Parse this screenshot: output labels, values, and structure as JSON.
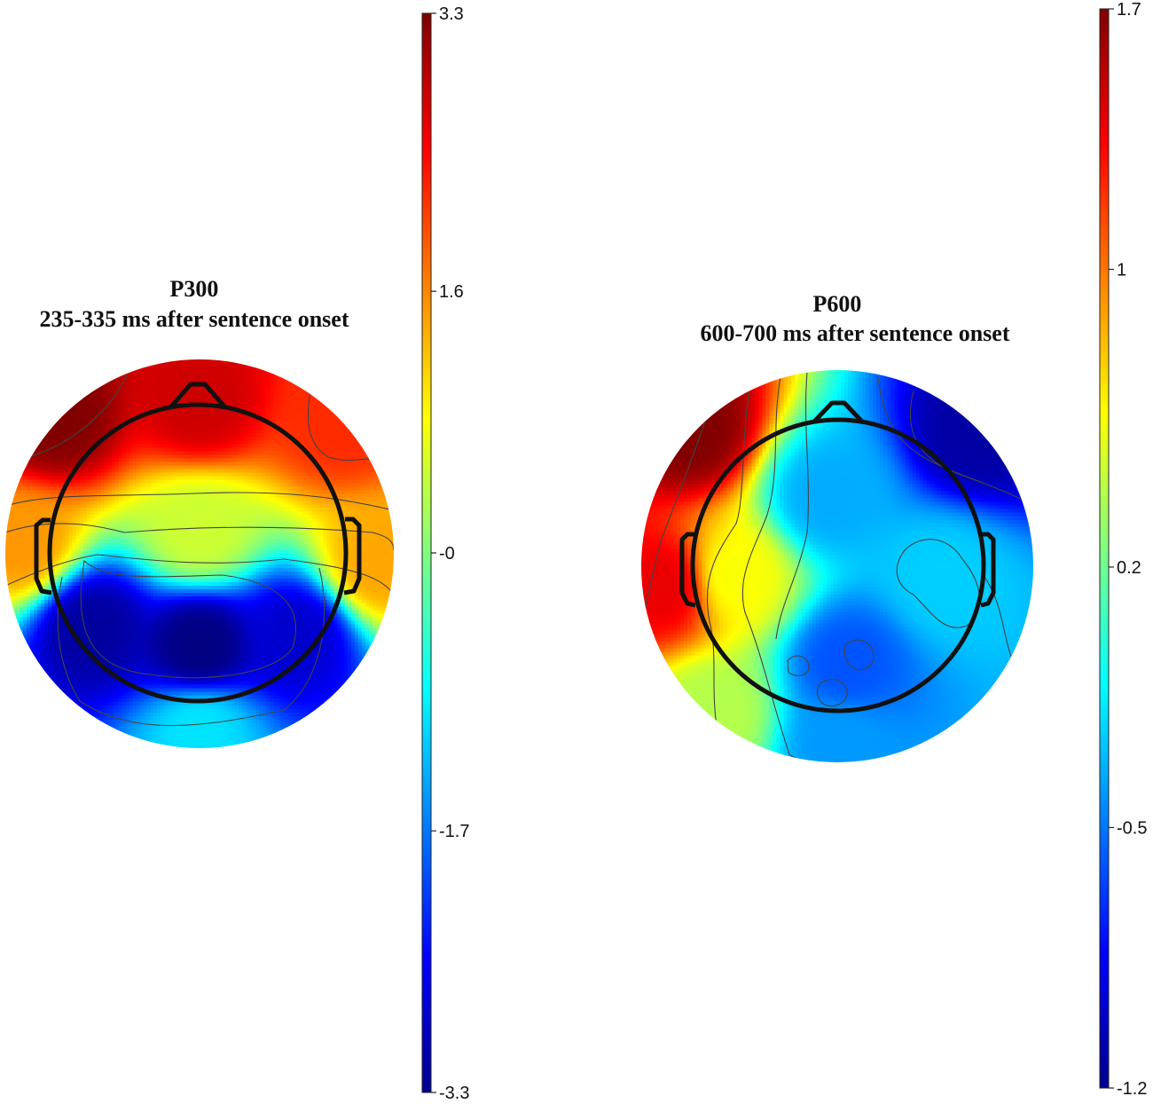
{
  "colors": {
    "colormap": "jet",
    "head_outline": "#111111",
    "contour": "#444444"
  },
  "chart_data": [
    {
      "type": "heatmap",
      "subtype": "eeg-scalp-topography",
      "title": "P300",
      "subtitle": "235-335 ms after sentence onset",
      "colorbar": {
        "min": -3.3,
        "max": 3.3,
        "tick_values": [
          3.3,
          1.6,
          0,
          -1.7,
          -3.3
        ],
        "tick_labels": [
          "3.3",
          "1.6",
          "-0",
          "-1.7",
          "-3.3"
        ]
      },
      "sources": [
        {
          "region": "left-frontal",
          "value": 3.3
        },
        {
          "region": "frontal",
          "value": 2.8
        },
        {
          "region": "right-frontal",
          "value": 2.2
        },
        {
          "region": "right-lateral",
          "value": 1.4
        },
        {
          "region": "left-lateral",
          "value": 1.5
        },
        {
          "region": "central",
          "value": 0.5
        },
        {
          "region": "left-parietal",
          "value": -3.1
        },
        {
          "region": "central-parietal",
          "value": -3.3
        },
        {
          "region": "right-parietal",
          "value": -2.8
        },
        {
          "region": "occipital",
          "value": -1.0
        }
      ]
    },
    {
      "type": "heatmap",
      "subtype": "eeg-scalp-topography",
      "title": "P600",
      "subtitle": "600-700 ms after sentence onset",
      "colorbar": {
        "min": -1.2,
        "max": 1.7,
        "tick_values": [
          1.7,
          1,
          0.2,
          -0.5,
          -1.2
        ],
        "tick_labels": [
          "1.7",
          "1",
          "0.2",
          "-0.5",
          "-1.2"
        ]
      },
      "sources": [
        {
          "region": "left-frontal",
          "value": 1.7
        },
        {
          "region": "left-temporal",
          "value": 1.4
        },
        {
          "region": "left-central",
          "value": 0.6
        },
        {
          "region": "left-occipital",
          "value": 0.4
        },
        {
          "region": "right-frontal",
          "value": -1.1
        },
        {
          "region": "midline",
          "value": -0.35
        },
        {
          "region": "right-central",
          "value": -0.25
        },
        {
          "region": "parietal",
          "value": -0.6
        },
        {
          "region": "occipital",
          "value": -0.4
        }
      ]
    }
  ]
}
